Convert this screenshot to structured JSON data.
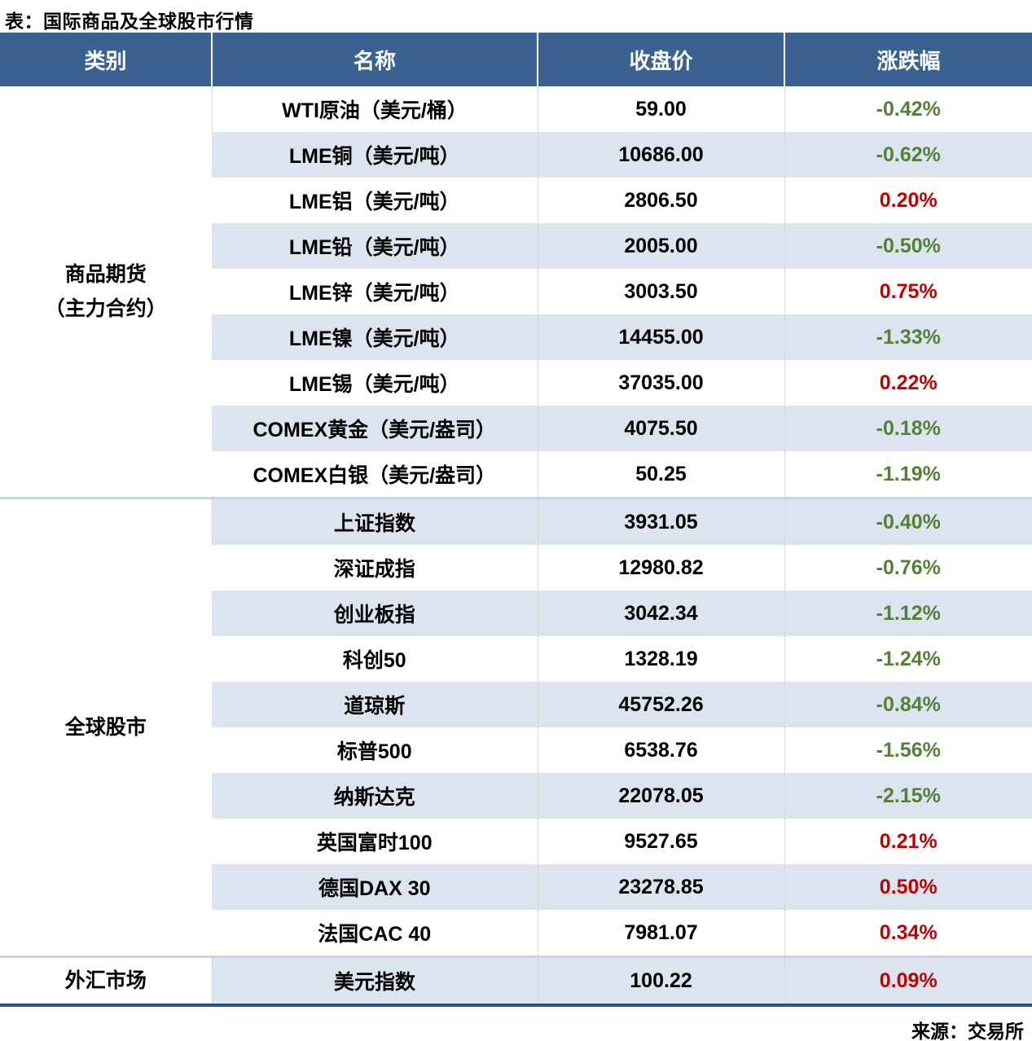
{
  "chart_data": {
    "type": "table",
    "title": "表：国际商品及全球股市行情",
    "source": "来源：交易所",
    "columns": [
      "类别",
      "名称",
      "收盘价",
      "涨跌幅"
    ],
    "colors": {
      "header_bg": "#3A6191",
      "header_text": "#FFFFFF",
      "stripe_bg": "#DCE4EF",
      "positive_change": "#C00000",
      "negative_change": "#538135",
      "bottom_border": "#2E5482",
      "group_divider": "#C7D5E8"
    },
    "groups": [
      {
        "category_lines": [
          "商品期货",
          "（主力合约）"
        ],
        "rows": [
          {
            "name": "WTI原油（美元/桶）",
            "close": "59.00",
            "change": "-0.42%"
          },
          {
            "name": "LME铜（美元/吨）",
            "close": "10686.00",
            "change": "-0.62%"
          },
          {
            "name": "LME铝（美元/吨）",
            "close": "2806.50",
            "change": "0.20%"
          },
          {
            "name": "LME铅（美元/吨）",
            "close": "2005.00",
            "change": "-0.50%"
          },
          {
            "name": "LME锌（美元/吨）",
            "close": "3003.50",
            "change": "0.75%"
          },
          {
            "name": "LME镍（美元/吨）",
            "close": "14455.00",
            "change": "-1.33%"
          },
          {
            "name": "LME锡（美元/吨）",
            "close": "37035.00",
            "change": "0.22%"
          },
          {
            "name": "COMEX黄金（美元/盎司）",
            "close": "4075.50",
            "change": "-0.18%"
          },
          {
            "name": "COMEX白银（美元/盎司）",
            "close": "50.25",
            "change": "-1.19%"
          }
        ]
      },
      {
        "category_lines": [
          "全球股市"
        ],
        "rows": [
          {
            "name": "上证指数",
            "close": "3931.05",
            "change": "-0.40%"
          },
          {
            "name": "深证成指",
            "close": "12980.82",
            "change": "-0.76%"
          },
          {
            "name": "创业板指",
            "close": "3042.34",
            "change": "-1.12%"
          },
          {
            "name": "科创50",
            "close": "1328.19",
            "change": "-1.24%"
          },
          {
            "name": "道琼斯",
            "close": "45752.26",
            "change": "-0.84%"
          },
          {
            "name": "标普500",
            "close": "6538.76",
            "change": "-1.56%"
          },
          {
            "name": "纳斯达克",
            "close": "22078.05",
            "change": "-2.15%"
          },
          {
            "name": "英国富时100",
            "close": "9527.65",
            "change": "0.21%"
          },
          {
            "name": "德国DAX 30",
            "close": "23278.85",
            "change": "0.50%"
          },
          {
            "name": "法国CAC 40",
            "close": "7981.07",
            "change": "0.34%"
          }
        ]
      },
      {
        "category_lines": [
          "外汇市场"
        ],
        "rows": [
          {
            "name": "美元指数",
            "close": "100.22",
            "change": "0.09%"
          }
        ]
      }
    ]
  }
}
